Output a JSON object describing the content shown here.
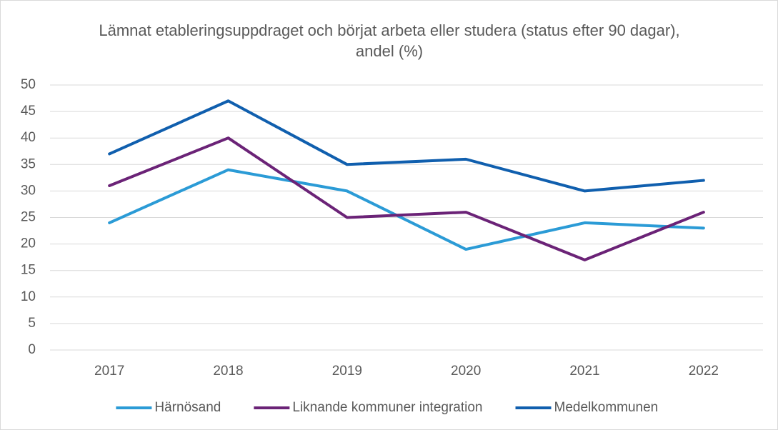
{
  "chart_data": {
    "type": "line",
    "title": "Lämnat etableringsuppdraget och börjat arbeta eller studera (status efter 90 dagar), andel (%)",
    "categories": [
      "2017",
      "2018",
      "2019",
      "2020",
      "2021",
      "2022"
    ],
    "series": [
      {
        "name": "Härnösand",
        "color": "#2b9bd6",
        "values": [
          24,
          34,
          30,
          19,
          24,
          23
        ]
      },
      {
        "name": "Liknande kommuner integration",
        "color": "#6b2377",
        "values": [
          31,
          40,
          25,
          26,
          17,
          26
        ]
      },
      {
        "name": "Medelkommunen",
        "color": "#105fae",
        "values": [
          37,
          47,
          35,
          36,
          30,
          32
        ]
      }
    ],
    "ylim": [
      0,
      50
    ],
    "yticks": [
      0,
      5,
      10,
      15,
      20,
      25,
      30,
      35,
      40,
      45,
      50
    ],
    "grid": true,
    "legend": "bottom"
  }
}
